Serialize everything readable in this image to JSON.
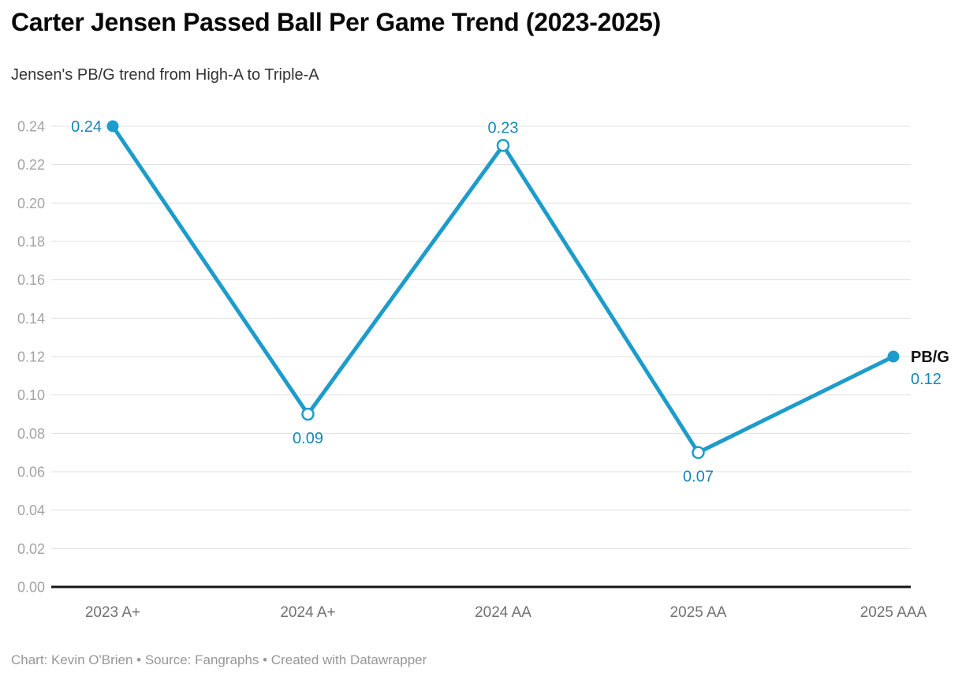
{
  "header": {
    "title": "Carter Jensen Passed Ball Per Game Trend (2023-2025)",
    "subtitle": "Jensen's PB/G trend from High-A to Triple-A"
  },
  "footer": {
    "attribution": "Chart: Kevin O'Brien • Source: Fangraphs • Created with Datawrapper"
  },
  "colors": {
    "line": "#1d9ccc",
    "value_label": "#1886b4",
    "series_label": "#111111",
    "grid": "#e0e0e0",
    "axis_line": "#151515",
    "y_tick_label": "#a3a3a3",
    "x_tick_label": "#717171",
    "marker_fill_open": "#ffffff"
  },
  "chart_data": {
    "type": "line",
    "title": "Carter Jensen Passed Ball Per Game Trend (2023-2025)",
    "subtitle": "Jensen's PB/G trend from High-A to Triple-A",
    "categories": [
      "2023 A+",
      "2024 A+",
      "2024 AA",
      "2025 AA",
      "2025 AAA"
    ],
    "series": [
      {
        "name": "PB/G",
        "values": [
          0.24,
          0.09,
          0.23,
          0.07,
          0.12
        ],
        "value_labels": [
          "0.24",
          "0.09",
          "0.23",
          "0.07",
          "0.12"
        ],
        "marker_styles": [
          "filled",
          "open",
          "open",
          "open",
          "filled"
        ],
        "label_placement": [
          "left",
          "below",
          "above",
          "below",
          "end"
        ]
      }
    ],
    "xlabel": "",
    "ylabel": "",
    "ylim": [
      0,
      0.24
    ],
    "ytick_step": 0.02,
    "ytick_labels": [
      "0.00",
      "0.02",
      "0.04",
      "0.06",
      "0.08",
      "0.10",
      "0.12",
      "0.14",
      "0.16",
      "0.18",
      "0.20",
      "0.22",
      "0.24"
    ],
    "grid": true,
    "legend_position": "end-of-line"
  }
}
